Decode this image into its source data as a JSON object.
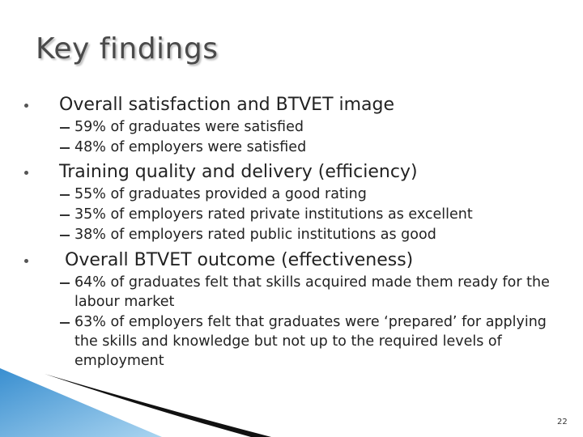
{
  "title": "Key findings",
  "sections": [
    {
      "heading": "Overall satisfaction and BTVET image",
      "items": [
        "59% of graduates were satisfied",
        "48% of employers were satisfied"
      ]
    },
    {
      "heading": "Training quality and delivery (efficiency)",
      "items": [
        "55% of graduates provided a good rating",
        "35% of employers rated private institutions as excellent",
        "38% of employers rated public institutions as good"
      ]
    },
    {
      "heading": "Overall BTVET outcome (effectiveness)",
      "items": [
        "64% of graduates felt that skills acquired made them ready for the labour market",
        "63% of employers felt that graduates were ‘prepared’ for applying the skills and knowledge but not up to the required levels of employment"
      ]
    }
  ],
  "page_number": "22"
}
